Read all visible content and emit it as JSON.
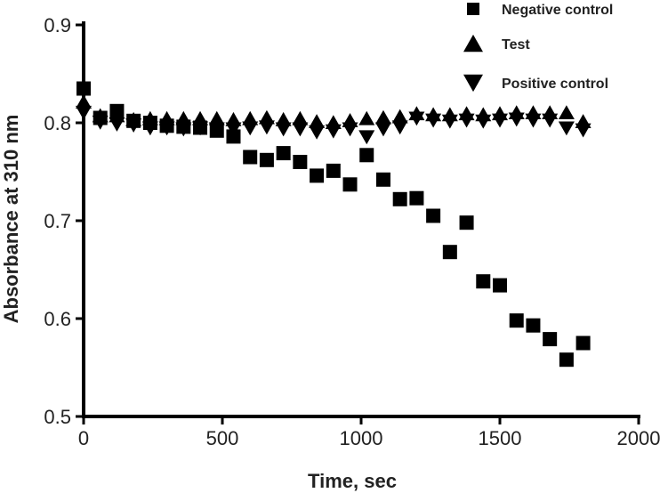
{
  "chart_data": {
    "type": "scatter",
    "title": "",
    "xlabel": "Time, sec",
    "ylabel": "Absorbance at 310 nm",
    "xlim": [
      0,
      2000
    ],
    "ylim": [
      0.5,
      0.9
    ],
    "xticks": [
      "0",
      "500",
      "1000",
      "1500",
      "2000"
    ],
    "yticks": [
      "0.5",
      "0.6",
      "0.7",
      "0.8",
      "0.9"
    ],
    "grid": false,
    "legend_position": "top-right",
    "series": [
      {
        "name": "Negative control",
        "marker": "square",
        "x": [
          0,
          60,
          120,
          180,
          240,
          300,
          360,
          420,
          480,
          540,
          600,
          660,
          720,
          780,
          840,
          900,
          960,
          1020,
          1080,
          1140,
          1200,
          1260,
          1320,
          1380,
          1440,
          1500,
          1560,
          1620,
          1680,
          1740,
          1800
        ],
        "y": [
          0.835,
          0.805,
          0.812,
          0.802,
          0.8,
          0.797,
          0.796,
          0.795,
          0.792,
          0.786,
          0.765,
          0.762,
          0.769,
          0.76,
          0.746,
          0.751,
          0.737,
          0.767,
          0.742,
          0.722,
          0.723,
          0.705,
          0.668,
          0.698,
          0.638,
          0.634,
          0.598,
          0.593,
          0.579,
          0.558,
          0.575
        ]
      },
      {
        "name": "Test",
        "marker": "triangle-up",
        "x": [
          0,
          60,
          120,
          180,
          240,
          300,
          360,
          420,
          480,
          540,
          600,
          660,
          720,
          780,
          840,
          900,
          960,
          1020,
          1080,
          1140,
          1200,
          1260,
          1320,
          1380,
          1440,
          1500,
          1560,
          1620,
          1680,
          1740,
          1800
        ],
        "y": [
          0.82,
          0.806,
          0.806,
          0.802,
          0.803,
          0.803,
          0.803,
          0.803,
          0.803,
          0.802,
          0.803,
          0.804,
          0.802,
          0.803,
          0.8,
          0.799,
          0.801,
          0.803,
          0.804,
          0.805,
          0.808,
          0.807,
          0.807,
          0.808,
          0.807,
          0.808,
          0.809,
          0.809,
          0.809,
          0.809,
          0.8
        ]
      },
      {
        "name": "Positive control",
        "marker": "triangle-down",
        "x": [
          0,
          60,
          120,
          180,
          240,
          300,
          360,
          420,
          480,
          540,
          600,
          660,
          720,
          780,
          840,
          900,
          960,
          1020,
          1080,
          1140,
          1200,
          1260,
          1320,
          1380,
          1440,
          1500,
          1560,
          1620,
          1680,
          1740,
          1800
        ],
        "y": [
          0.812,
          0.802,
          0.8,
          0.799,
          0.796,
          0.796,
          0.795,
          0.796,
          0.795,
          0.795,
          0.796,
          0.797,
          0.795,
          0.795,
          0.792,
          0.793,
          0.795,
          0.787,
          0.795,
          0.797,
          0.806,
          0.804,
          0.803,
          0.804,
          0.803,
          0.804,
          0.805,
          0.804,
          0.804,
          0.796,
          0.794
        ]
      }
    ]
  }
}
